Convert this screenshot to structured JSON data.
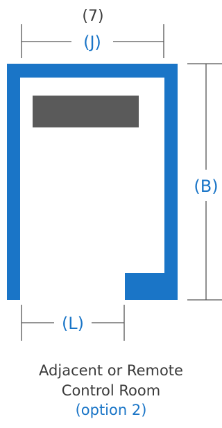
{
  "diagram": {
    "top_number": "(7)",
    "width_label": "(J)",
    "height_label": "(B)",
    "door_label": "(L)",
    "caption_line1": "Adjacent or Remote",
    "caption_line2": "Control Room",
    "caption_line3": "(option 2)"
  },
  "colors": {
    "wall_blue": "#1a75c7",
    "label_blue": "#1a75c7",
    "console_gray": "#5a5a5a",
    "line_gray": "#555555",
    "text_dark": "#3a3a3a"
  }
}
